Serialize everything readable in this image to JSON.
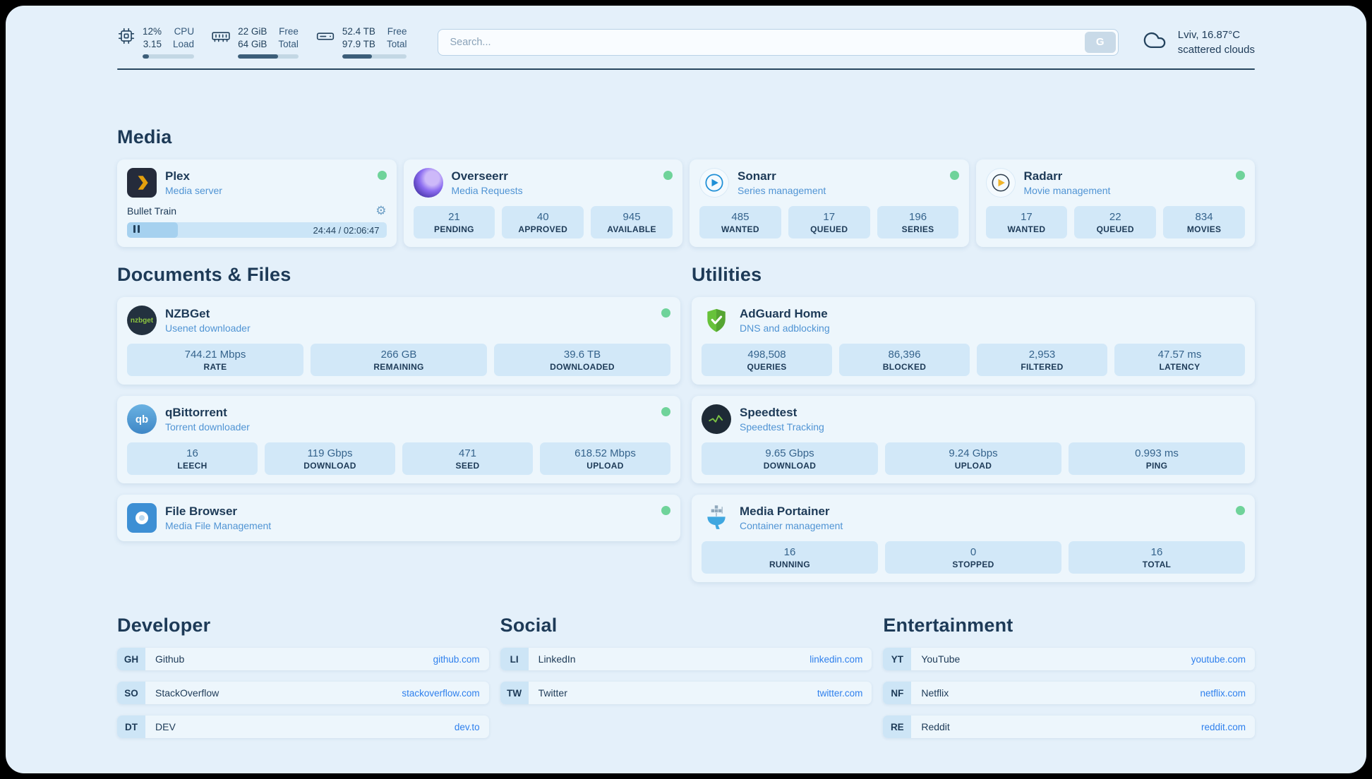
{
  "theme": {
    "page_bg": "#e4f0fa",
    "card_bg": "#edf6fc",
    "stat_bg": "#d2e8f8",
    "heading_color": "#1d3a57",
    "subtitle_color": "#5094d4",
    "link_color": "#2f80ed",
    "status_green": "#6fd39a",
    "bar_fill": "#3c5e79"
  },
  "icons": {
    "gear": "⚙"
  },
  "header": {
    "cpu": {
      "value": "12%",
      "value2": "3.15",
      "label": "CPU",
      "label2": "Load",
      "fill": "12%"
    },
    "memory": {
      "value": "22 GiB",
      "value2": "64 GiB",
      "label": "Free",
      "label2": "Total",
      "fill": "66%"
    },
    "storage": {
      "value": "52.4 TB",
      "value2": "97.9 TB",
      "label": "Free",
      "label2": "Total",
      "fill": "46%"
    },
    "search": {
      "placeholder": "Search...",
      "button": "G"
    },
    "weather": {
      "location": "Lviv, 16.87°C",
      "condition": "scattered clouds"
    }
  },
  "media": {
    "title": "Media",
    "plex": {
      "name": "Plex",
      "subtitle": "Media server",
      "now_playing": "Bullet Train",
      "time": "24:44 / 02:06:47",
      "progress": "19.5%"
    },
    "overseerr": {
      "name": "Overseerr",
      "subtitle": "Media Requests",
      "stats": [
        {
          "value": "21",
          "label": "PENDING"
        },
        {
          "value": "40",
          "label": "APPROVED"
        },
        {
          "value": "945",
          "label": "AVAILABLE"
        }
      ]
    },
    "sonarr": {
      "name": "Sonarr",
      "subtitle": "Series management",
      "stats": [
        {
          "value": "485",
          "label": "WANTED"
        },
        {
          "value": "17",
          "label": "QUEUED"
        },
        {
          "value": "196",
          "label": "SERIES"
        }
      ]
    },
    "radarr": {
      "name": "Radarr",
      "subtitle": "Movie management",
      "stats": [
        {
          "value": "17",
          "label": "WANTED"
        },
        {
          "value": "22",
          "label": "QUEUED"
        },
        {
          "value": "834",
          "label": "MOVIES"
        }
      ]
    }
  },
  "documents": {
    "title": "Documents & Files",
    "nzbget": {
      "name": "NZBGet",
      "subtitle": "Usenet downloader",
      "logo_text": "nzbget",
      "stats": [
        {
          "value": "744.21 Mbps",
          "label": "RATE"
        },
        {
          "value": "266 GB",
          "label": "REMAINING"
        },
        {
          "value": "39.6 TB",
          "label": "DOWNLOADED"
        }
      ]
    },
    "qbittorrent": {
      "name": "qBittorrent",
      "subtitle": "Torrent downloader",
      "logo_text": "qb",
      "stats": [
        {
          "value": "16",
          "label": "LEECH"
        },
        {
          "value": "119 Gbps",
          "label": "DOWNLOAD"
        },
        {
          "value": "471",
          "label": "SEED"
        },
        {
          "value": "618.52 Mbps",
          "label": "UPLOAD"
        }
      ]
    },
    "filebrowser": {
      "name": "File Browser",
      "subtitle": "Media File Management"
    }
  },
  "utilities": {
    "title": "Utilities",
    "adguard": {
      "name": "AdGuard Home",
      "subtitle": "DNS and adblocking",
      "stats": [
        {
          "value": "498,508",
          "label": "QUERIES"
        },
        {
          "value": "86,396",
          "label": "BLOCKED"
        },
        {
          "value": "2,953",
          "label": "FILTERED"
        },
        {
          "value": "47.57 ms",
          "label": "LATENCY"
        }
      ]
    },
    "speedtest": {
      "name": "Speedtest",
      "subtitle": "Speedtest Tracking",
      "stats": [
        {
          "value": "9.65 Gbps",
          "label": "DOWNLOAD"
        },
        {
          "value": "9.24 Gbps",
          "label": "UPLOAD"
        },
        {
          "value": "0.993 ms",
          "label": "PING"
        }
      ]
    },
    "portainer": {
      "name": "Media Portainer",
      "subtitle": "Container management",
      "stats": [
        {
          "value": "16",
          "label": "RUNNING"
        },
        {
          "value": "0",
          "label": "STOPPED"
        },
        {
          "value": "16",
          "label": "TOTAL"
        }
      ]
    }
  },
  "bookmarks": [
    {
      "title": "Developer",
      "items": [
        {
          "abbr": "GH",
          "name": "Github",
          "url": "github.com"
        },
        {
          "abbr": "SO",
          "name": "StackOverflow",
          "url": "stackoverflow.com"
        },
        {
          "abbr": "DT",
          "name": "DEV",
          "url": "dev.to"
        }
      ]
    },
    {
      "title": "Social",
      "items": [
        {
          "abbr": "LI",
          "name": "LinkedIn",
          "url": "linkedin.com"
        },
        {
          "abbr": "TW",
          "name": "Twitter",
          "url": "twitter.com"
        }
      ]
    },
    {
      "title": "Entertainment",
      "items": [
        {
          "abbr": "YT",
          "name": "YouTube",
          "url": "youtube.com"
        },
        {
          "abbr": "NF",
          "name": "Netflix",
          "url": "netflix.com"
        },
        {
          "abbr": "RE",
          "name": "Reddit",
          "url": "reddit.com"
        }
      ]
    }
  ]
}
